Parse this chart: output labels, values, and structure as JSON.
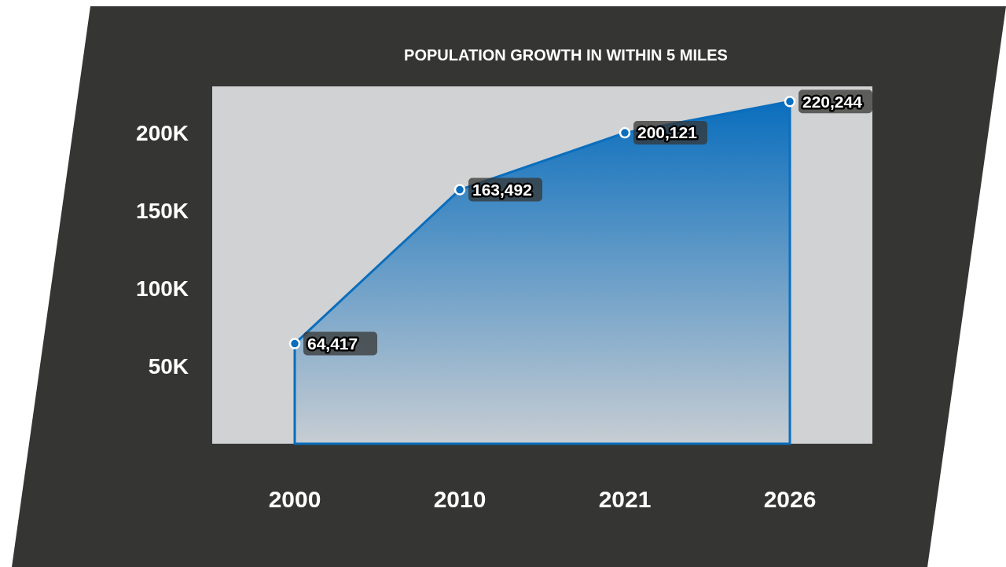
{
  "chart_data": {
    "type": "area",
    "title": "POPULATION GROWTH IN WITHIN 5 MILES",
    "categories": [
      "2000",
      "2010",
      "2021",
      "2026"
    ],
    "series": [
      {
        "color": "#0a6ebd",
        "values": [
          64417,
          163492,
          200121,
          220244
        ],
        "value_labels": [
          "64,417",
          "163,492",
          "200,121",
          "220,244"
        ]
      }
    ],
    "ylim": [
      0,
      230000
    ],
    "yticks": [
      {
        "value": 50000,
        "label": "50K"
      },
      {
        "value": 100000,
        "label": "100K"
      },
      {
        "value": 150000,
        "label": "150K"
      },
      {
        "value": 200000,
        "label": "200K"
      }
    ],
    "marker": "circle"
  }
}
